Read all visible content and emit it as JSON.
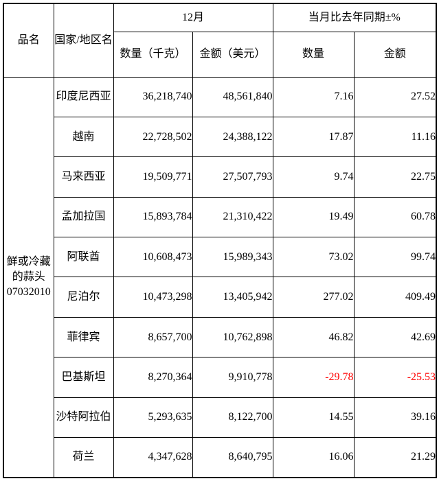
{
  "colors": {
    "negative": "#ff0000",
    "border": "#000000",
    "background": "#ffffff"
  },
  "table": {
    "headers": {
      "product": "品名",
      "country": "国家/地区名",
      "month_group": "12月",
      "yoy_group": "当月比去年同期±%",
      "qty_kg": "数量（千克）",
      "amount_usd": "金额（美元）",
      "qty": "数量",
      "amount": "金额"
    },
    "product": {
      "name": "鲜或冷藏的蒜头",
      "code": "07032010"
    },
    "rows": [
      {
        "country": "印度尼西亚",
        "qty": "36,218,740",
        "amount": "48,561,840",
        "qty_pct": "7.16",
        "amount_pct": "27.52"
      },
      {
        "country": "越南",
        "qty": "22,728,502",
        "amount": "24,388,122",
        "qty_pct": "17.87",
        "amount_pct": "11.16"
      },
      {
        "country": "马来西亚",
        "qty": "19,509,771",
        "amount": "27,507,793",
        "qty_pct": "9.74",
        "amount_pct": "22.75"
      },
      {
        "country": "孟加拉国",
        "qty": "15,893,784",
        "amount": "21,310,422",
        "qty_pct": "19.49",
        "amount_pct": "60.78"
      },
      {
        "country": "阿联酋",
        "qty": "10,608,473",
        "amount": "15,989,343",
        "qty_pct": "73.02",
        "amount_pct": "99.74"
      },
      {
        "country": "尼泊尔",
        "qty": "10,473,298",
        "amount": "13,405,942",
        "qty_pct": "277.02",
        "amount_pct": "409.49"
      },
      {
        "country": "菲律宾",
        "qty": "8,657,700",
        "amount": "10,762,898",
        "qty_pct": "46.82",
        "amount_pct": "42.69"
      },
      {
        "country": "巴基斯坦",
        "qty": "8,270,364",
        "amount": "9,910,778",
        "qty_pct": "-29.78",
        "amount_pct": "-25.53"
      },
      {
        "country": "沙特阿拉伯",
        "qty": "5,293,635",
        "amount": "8,122,700",
        "qty_pct": "14.55",
        "amount_pct": "39.16"
      },
      {
        "country": "荷兰",
        "qty": "4,347,628",
        "amount": "8,640,795",
        "qty_pct": "16.06",
        "amount_pct": "21.29"
      }
    ]
  }
}
